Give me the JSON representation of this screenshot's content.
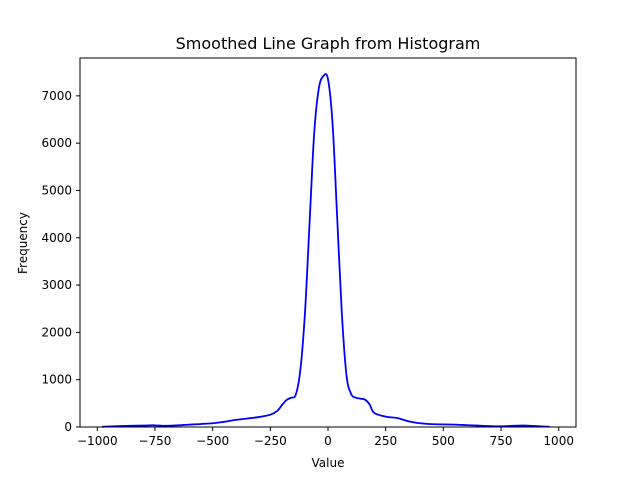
{
  "chart_data": {
    "type": "line",
    "title": "Smoothed Line Graph from Histogram",
    "xlabel": "Value",
    "ylabel": "Frequency",
    "xlim": [
      -1075,
      1075
    ],
    "ylim": [
      0,
      7800
    ],
    "xticks": [
      -1000,
      -750,
      -500,
      -250,
      0,
      250,
      500,
      750,
      1000
    ],
    "yticks": [
      0,
      1000,
      2000,
      3000,
      4000,
      5000,
      6000,
      7000
    ],
    "grid": false,
    "series": [
      {
        "color": "#0000ff",
        "x": [
          -980,
          -900,
          -800,
          -750,
          -700,
          -600,
          -500,
          -450,
          -400,
          -350,
          -300,
          -250,
          -220,
          -200,
          -180,
          -160,
          -140,
          -120,
          -100,
          -80,
          -60,
          -40,
          -20,
          0,
          20,
          40,
          60,
          80,
          100,
          120,
          140,
          160,
          180,
          200,
          250,
          300,
          350,
          400,
          450,
          500,
          550,
          600,
          650,
          700,
          750,
          800,
          850,
          900,
          960
        ],
        "y": [
          5,
          20,
          30,
          35,
          25,
          50,
          80,
          110,
          150,
          180,
          210,
          260,
          340,
          460,
          570,
          620,
          680,
          1200,
          2400,
          4300,
          6200,
          7150,
          7420,
          7350,
          6400,
          4400,
          2400,
          1100,
          700,
          620,
          600,
          580,
          480,
          300,
          220,
          190,
          120,
          80,
          60,
          55,
          50,
          40,
          30,
          20,
          15,
          25,
          30,
          20,
          5
        ]
      }
    ]
  }
}
